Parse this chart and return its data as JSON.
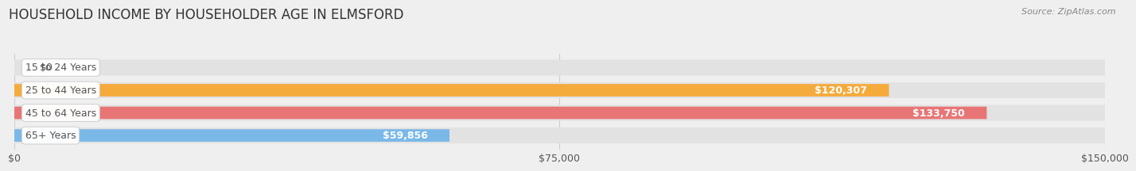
{
  "title": "HOUSEHOLD INCOME BY HOUSEHOLDER AGE IN ELMSFORD",
  "source": "Source: ZipAtlas.com",
  "categories": [
    "15 to 24 Years",
    "25 to 44 Years",
    "45 to 64 Years",
    "65+ Years"
  ],
  "values": [
    0,
    120307,
    133750,
    59856
  ],
  "bar_colors": [
    "#f4a0b5",
    "#f5aa3c",
    "#e87575",
    "#7ab8e8"
  ],
  "bg_color": "#efefef",
  "bar_bg_color": "#e2e2e2",
  "xmax": 150000,
  "xticks": [
    0,
    75000,
    150000
  ],
  "xticklabels": [
    "$0",
    "$75,000",
    "$150,000"
  ],
  "value_labels": [
    "$0",
    "$120,307",
    "$133,750",
    "$59,856"
  ],
  "title_fontsize": 12,
  "axis_fontsize": 9,
  "bar_label_fontsize": 9,
  "value_label_fontsize": 9,
  "label_text_color": "#555555",
  "title_color": "#333333",
  "source_color": "#888888"
}
